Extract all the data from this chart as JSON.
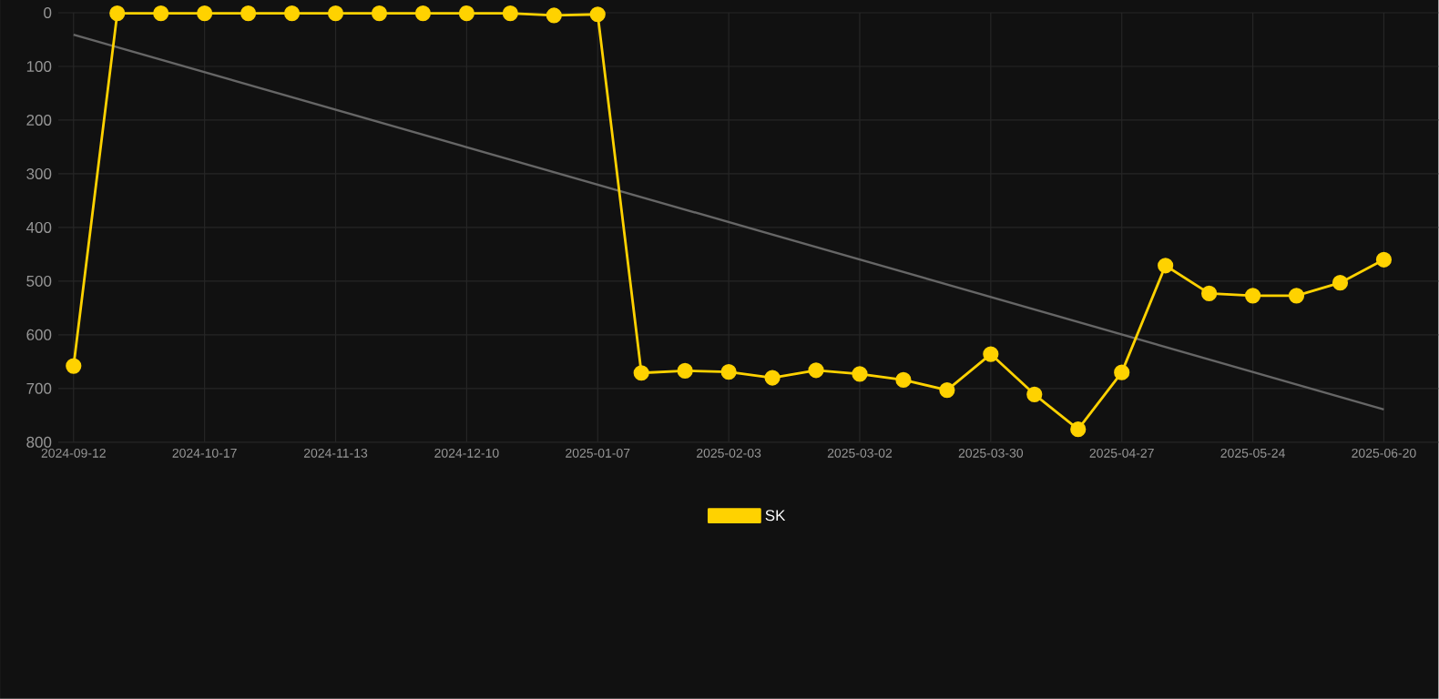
{
  "chart_data": {
    "type": "line",
    "categories": [
      "2024-09-12",
      null,
      null,
      "2024-10-17",
      null,
      null,
      "2024-11-13",
      null,
      null,
      "2024-12-10",
      null,
      null,
      "2025-01-07",
      null,
      null,
      "2025-02-03",
      null,
      null,
      "2025-03-02",
      null,
      null,
      "2025-03-30",
      null,
      null,
      "2025-04-27",
      null,
      null,
      "2025-05-24",
      null,
      null,
      "2025-06-20"
    ],
    "series": [
      {
        "name": "SK",
        "color": "#ffd200",
        "values": [
          658,
          1,
          1,
          1,
          1,
          1,
          1,
          1,
          1,
          1,
          1,
          5,
          3,
          671,
          667,
          669,
          680,
          666,
          673,
          684,
          703,
          636,
          711,
          776,
          670,
          471,
          523,
          527,
          527,
          503,
          460
        ]
      },
      {
        "type": "line",
        "color": "#666666",
        "marker": "none",
        "values": [
          41,
          null,
          null,
          null,
          null,
          null,
          null,
          null,
          null,
          null,
          null,
          null,
          null,
          null,
          null,
          null,
          null,
          null,
          null,
          null,
          null,
          null,
          null,
          null,
          null,
          null,
          null,
          null,
          null,
          null,
          739
        ]
      }
    ],
    "ylim": [
      800,
      0
    ],
    "yticks": [
      0,
      100,
      200,
      300,
      400,
      500,
      600,
      700,
      800
    ],
    "grid": true,
    "legend": "bottom",
    "marker": "circle",
    "line_style": "solid"
  }
}
